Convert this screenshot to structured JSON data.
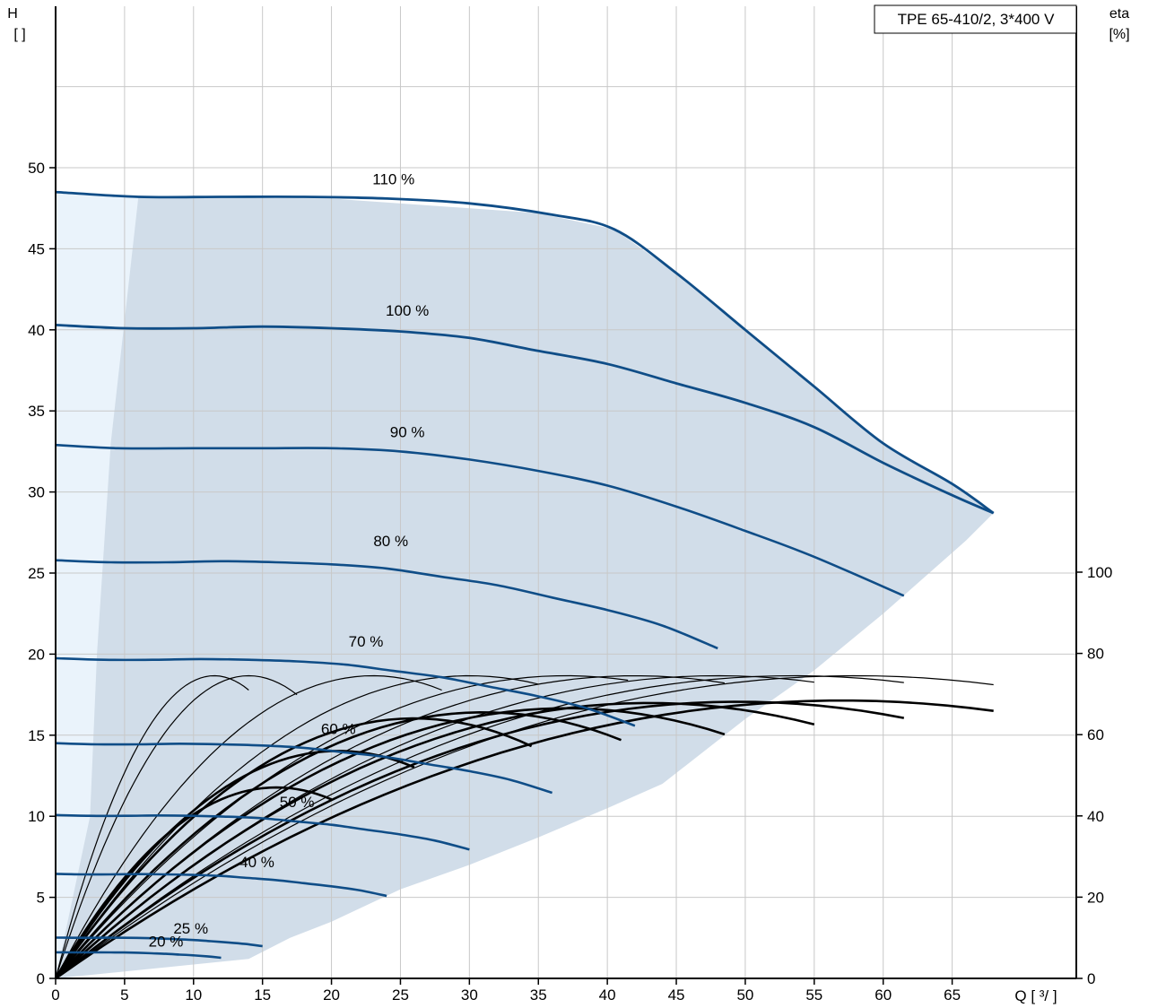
{
  "chart_data": {
    "type": "line",
    "title": "TPE 65-410/2, 3*400 V",
    "ylabel_left": {
      "name": "H",
      "unit": "[ ]"
    },
    "ylabel_right": {
      "name": "eta",
      "unit": "[%]"
    },
    "xlabel": "Q [ ³/ ]",
    "x_range": [
      0,
      74
    ],
    "xlim": [
      0,
      68
    ],
    "ylim_left": [
      0,
      58
    ],
    "ylim_right": [
      0,
      100
    ],
    "x_ticks": [
      0,
      5,
      10,
      15,
      20,
      25,
      30,
      35,
      40,
      45,
      50,
      55,
      60,
      65
    ],
    "y_ticks_left": [
      0,
      5,
      10,
      15,
      20,
      25,
      30,
      35,
      40,
      45,
      50
    ],
    "y_ticks_right": [
      0,
      20,
      40,
      60,
      80,
      100
    ],
    "grid": true,
    "colors": {
      "head_curve": "#0f4d87",
      "efficiency_curve": "#000000",
      "operating_area": "#d1dde9",
      "low_flow_area": "#eaf3fb",
      "grid": "#c8c8c8"
    },
    "operating_area_outline": [
      [
        0,
        48.5
      ],
      [
        6,
        48.2
      ],
      [
        20,
        48.1
      ],
      [
        35,
        47.2
      ],
      [
        40.5,
        46.2
      ],
      [
        45,
        43.5
      ],
      [
        50,
        40
      ],
      [
        55,
        36.5
      ],
      [
        60,
        33
      ],
      [
        65,
        30.5
      ],
      [
        68,
        28.7
      ],
      [
        66,
        27
      ],
      [
        60,
        22.5
      ],
      [
        55,
        19
      ],
      [
        50,
        16
      ],
      [
        47,
        14
      ],
      [
        44,
        12
      ],
      [
        40,
        10.5
      ],
      [
        35,
        8.7
      ],
      [
        30,
        7
      ],
      [
        25,
        5.5
      ],
      [
        20,
        3.5
      ],
      [
        17,
        2.5
      ],
      [
        14,
        1.2
      ],
      [
        0,
        0
      ]
    ],
    "low_flow_outline": [
      [
        0,
        48.5
      ],
      [
        6,
        48.2
      ],
      [
        4,
        33
      ],
      [
        3,
        20
      ],
      [
        2.5,
        10
      ],
      [
        0,
        0
      ]
    ],
    "head_curves": [
      {
        "name": "110 %",
        "label_at": [
          24.5,
          49.3
        ],
        "points": [
          [
            0,
            48.5
          ],
          [
            6,
            48.2
          ],
          [
            12,
            48.2
          ],
          [
            18,
            48.2
          ],
          [
            24,
            48.1
          ],
          [
            30,
            47.8
          ],
          [
            36,
            47.1
          ],
          [
            40.5,
            46.2
          ],
          [
            45,
            43.5
          ],
          [
            50,
            40
          ],
          [
            55,
            36.5
          ],
          [
            60,
            33
          ],
          [
            65,
            30.5
          ],
          [
            68,
            28.7
          ]
        ]
      },
      {
        "name": "100 %",
        "label_at": [
          25.5,
          41.2
        ],
        "points": [
          [
            0,
            40.3
          ],
          [
            5,
            40.1
          ],
          [
            10,
            40.1
          ],
          [
            15,
            40.2
          ],
          [
            20,
            40.1
          ],
          [
            25,
            39.9
          ],
          [
            30,
            39.5
          ],
          [
            35,
            38.7
          ],
          [
            40,
            37.9
          ],
          [
            45,
            36.7
          ],
          [
            50,
            35.5
          ],
          [
            55,
            34
          ],
          [
            60,
            31.8
          ],
          [
            65,
            29.8
          ],
          [
            68,
            28.7
          ]
        ]
      },
      {
        "name": "90 %",
        "label_at": [
          25.5,
          33.7
        ],
        "points": [
          [
            0,
            32.9
          ],
          [
            4.5,
            32.7
          ],
          [
            10,
            32.7
          ],
          [
            15,
            32.7
          ],
          [
            20,
            32.7
          ],
          [
            25,
            32.5
          ],
          [
            30,
            32
          ],
          [
            35,
            31.3
          ],
          [
            40,
            30.4
          ],
          [
            45,
            29.1
          ],
          [
            50,
            27.6
          ],
          [
            55,
            26
          ],
          [
            61.5,
            23.6
          ]
        ]
      },
      {
        "name": "80 %",
        "label_at": [
          24.3,
          27
        ]
      },
      {
        "name": "70 %",
        "label_at": [
          22.5,
          20.8
        ]
      },
      {
        "name": "60 %",
        "label_at": [
          20.5,
          15.4
        ]
      },
      {
        "name": "50 %",
        "label_at": [
          17.5,
          10.9
        ]
      },
      {
        "name": "40 %",
        "label_at": [
          14.6,
          7.2
        ]
      },
      {
        "name": "25 %",
        "label_at": [
          9.8,
          3.1
        ]
      },
      {
        "name": "20 %",
        "label_at": [
          8,
          2.3
        ]
      }
    ],
    "efficiency_note": "Efficiency curves are unlabelled in the original; one per speed, peaking near 74% (thin) and 68% (bold)."
  }
}
